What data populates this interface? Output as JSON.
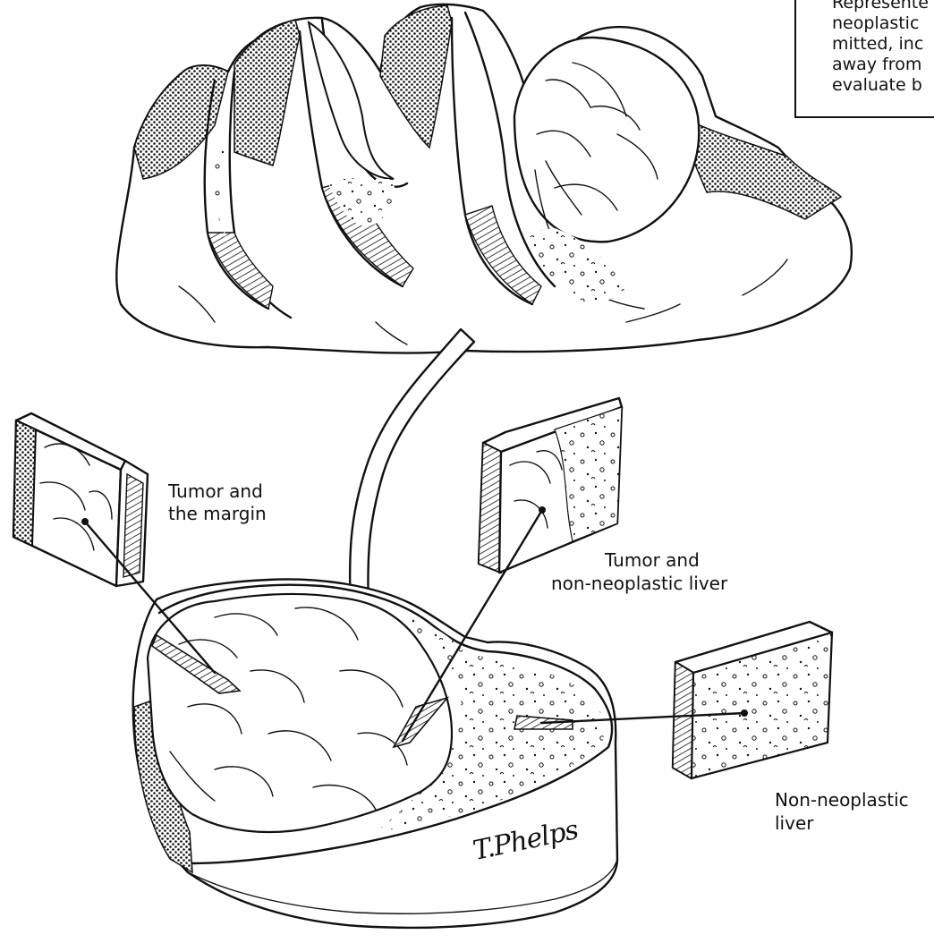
{
  "note": {
    "lines": [
      "Represente",
      "neoplastic",
      "mitted, inc",
      "away from",
      "evaluate b"
    ]
  },
  "labels": {
    "tumor_margin_1": "Tumor and",
    "tumor_margin_2": "the margin",
    "tumor_liver_1": "Tumor and",
    "tumor_liver_2": "non-neoplastic liver",
    "nonneo_1": "Non-neoplastic",
    "nonneo_2": "liver"
  },
  "signature": "T.Phelps",
  "colors": {
    "ink": "#111111",
    "paper": "#ffffff"
  },
  "icons": [
    "liver-specimen-illustration",
    "curved-arrow-icon",
    "tissue-block-icon"
  ]
}
